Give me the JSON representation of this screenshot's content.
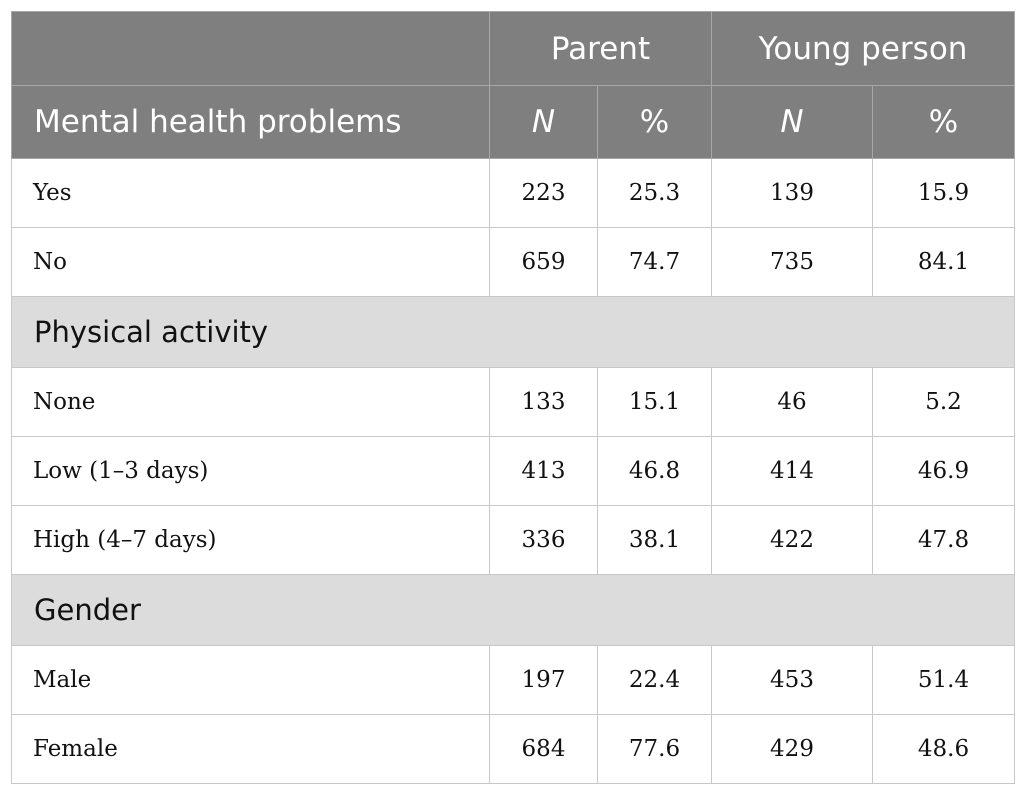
{
  "header": {
    "group_parent": "Parent",
    "group_young": "Young person",
    "first_col": "Mental health problems",
    "n_label": "N",
    "pct_label": "%"
  },
  "sections": [
    {
      "rows": [
        {
          "label": "Yes",
          "parent_n": "223",
          "parent_pct": "25.3",
          "young_n": "139",
          "young_pct": "15.9"
        },
        {
          "label": "No",
          "parent_n": "659",
          "parent_pct": "74.7",
          "young_n": "735",
          "young_pct": "84.1"
        }
      ]
    },
    {
      "title": "Physical activity",
      "rows": [
        {
          "label": "None",
          "parent_n": "133",
          "parent_pct": "15.1",
          "young_n": "46",
          "young_pct": "5.2"
        },
        {
          "label": "Low (1–3 days)",
          "parent_n": "413",
          "parent_pct": "46.8",
          "young_n": "414",
          "young_pct": "46.9"
        },
        {
          "label": "High (4–7 days)",
          "parent_n": "336",
          "parent_pct": "38.1",
          "young_n": "422",
          "young_pct": "47.8"
        }
      ]
    },
    {
      "title": "Gender",
      "rows": [
        {
          "label": "Male",
          "parent_n": "197",
          "parent_pct": "22.4",
          "young_n": "453",
          "young_pct": "51.4"
        },
        {
          "label": "Female",
          "parent_n": "684",
          "parent_pct": "77.6",
          "young_n": "429",
          "young_pct": "48.6"
        }
      ]
    }
  ]
}
